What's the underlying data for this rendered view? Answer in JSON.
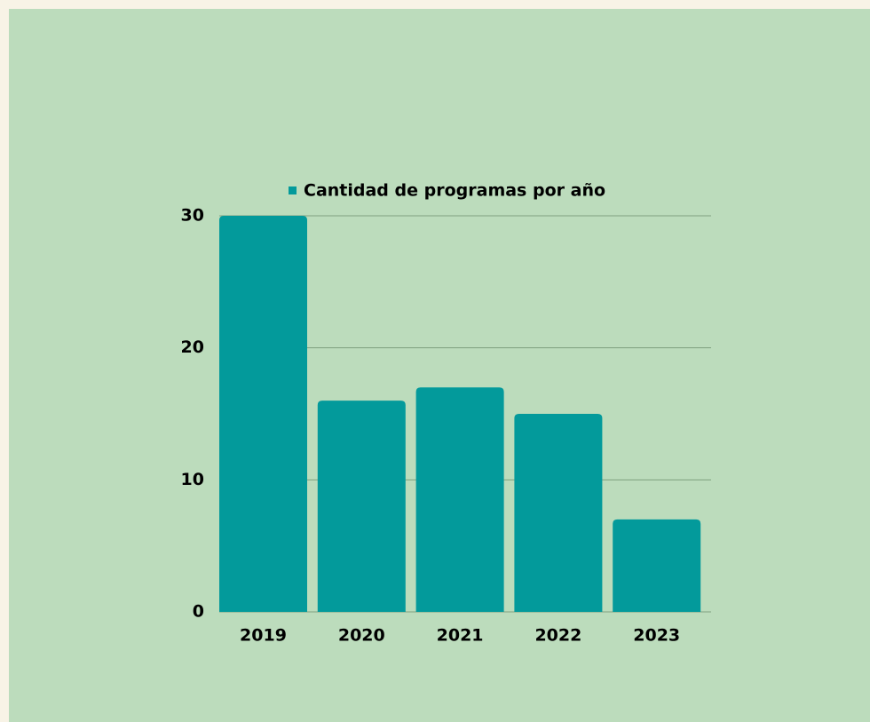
{
  "chart_data": {
    "type": "bar",
    "categories": [
      "2019",
      "2020",
      "2021",
      "2022",
      "2023"
    ],
    "series": [
      {
        "name": "Cantidad de programas por año",
        "color": "#039a9b",
        "values": [
          30,
          16,
          17,
          15,
          7
        ]
      }
    ],
    "ylim": [
      0,
      30
    ],
    "yticks": [
      0,
      10,
      20,
      30
    ],
    "grid": true,
    "legend": "top"
  }
}
